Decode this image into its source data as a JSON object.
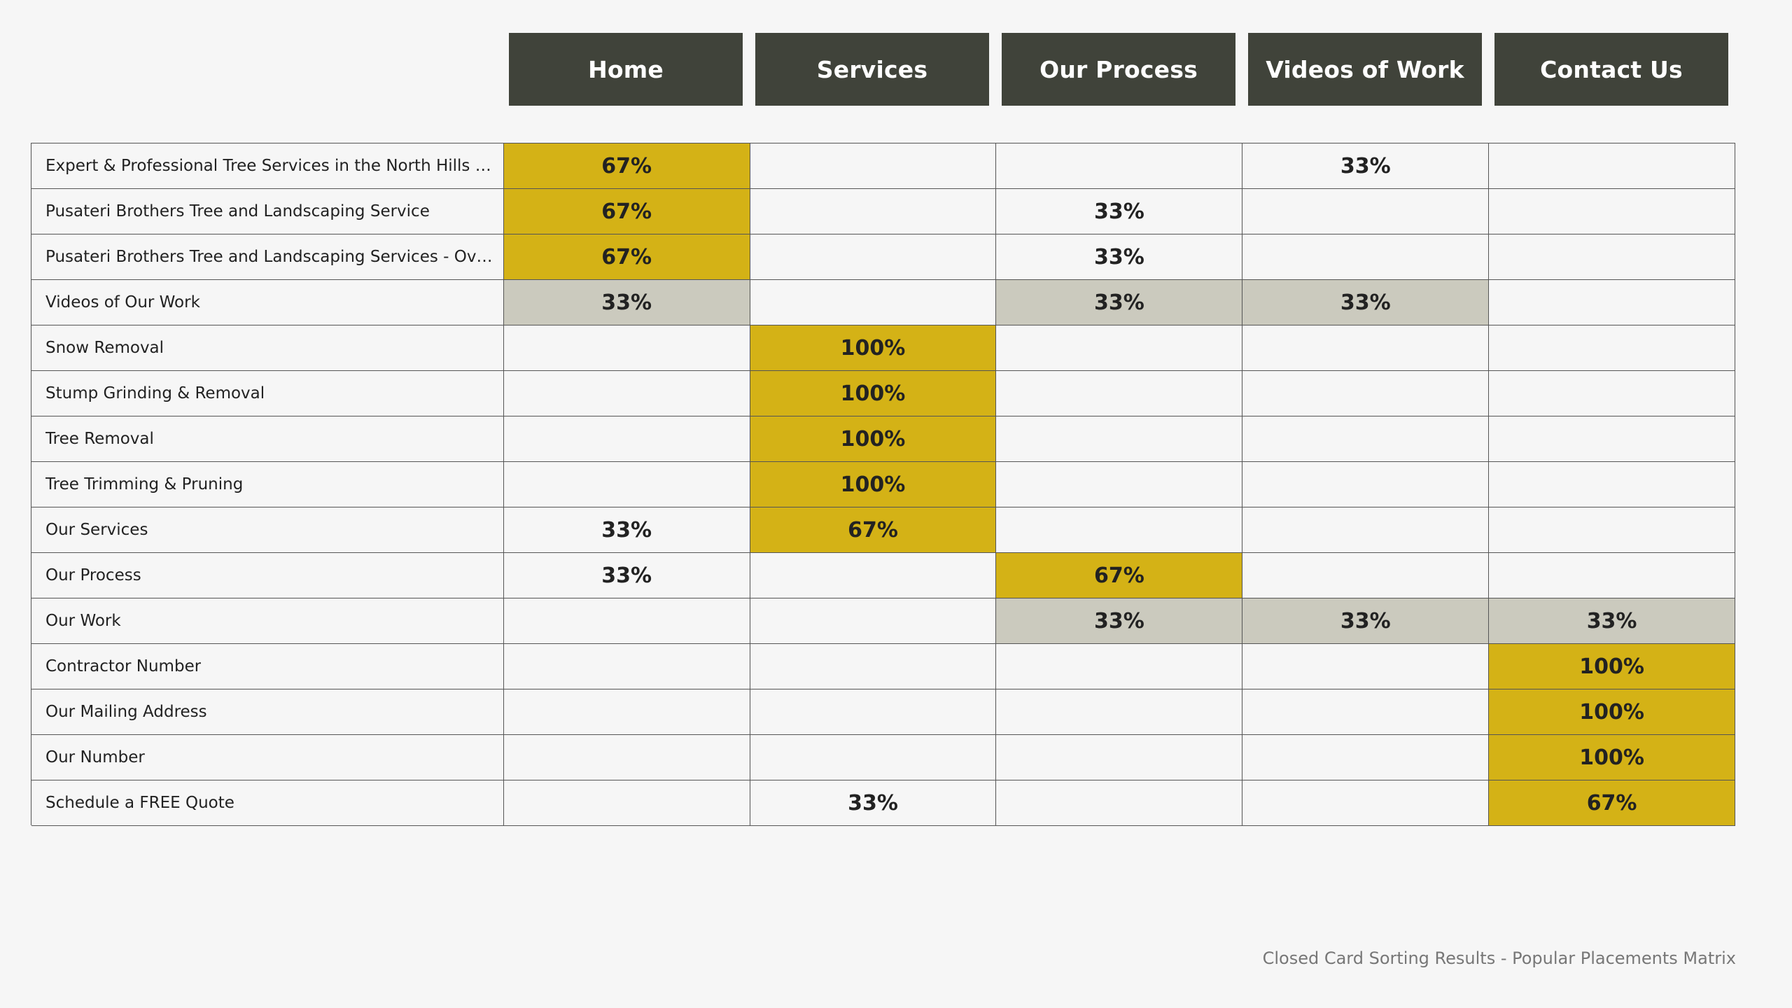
{
  "chart_data": {
    "type": "table",
    "columns": [
      "Home",
      "Services",
      "Our Process",
      "Videos of Work",
      "Contact Us"
    ],
    "rows": [
      {
        "label": "Expert & Professional Tree Services in the North Hills of...",
        "values": [
          "67%",
          "",
          "",
          "33%",
          ""
        ],
        "highlight": [
          "primary",
          "",
          "",
          "",
          ""
        ]
      },
      {
        "label": "Pusateri Brothers Tree and Landscaping Service",
        "values": [
          "67%",
          "",
          "33%",
          "",
          ""
        ],
        "highlight": [
          "primary",
          "",
          "",
          "",
          ""
        ]
      },
      {
        "label": "Pusateri Brothers Tree and Landscaping Services - Over...",
        "values": [
          "67%",
          "",
          "33%",
          "",
          ""
        ],
        "highlight": [
          "primary",
          "",
          "",
          "",
          ""
        ]
      },
      {
        "label": "Videos of Our Work",
        "values": [
          "33%",
          "",
          "33%",
          "33%",
          ""
        ],
        "highlight": [
          "tie",
          "",
          "tie",
          "tie",
          ""
        ]
      },
      {
        "label": "Snow Removal",
        "values": [
          "",
          "100%",
          "",
          "",
          ""
        ],
        "highlight": [
          "",
          "primary",
          "",
          "",
          ""
        ]
      },
      {
        "label": "Stump Grinding & Removal",
        "values": [
          "",
          "100%",
          "",
          "",
          ""
        ],
        "highlight": [
          "",
          "primary",
          "",
          "",
          ""
        ]
      },
      {
        "label": "Tree Removal",
        "values": [
          "",
          "100%",
          "",
          "",
          ""
        ],
        "highlight": [
          "",
          "primary",
          "",
          "",
          ""
        ]
      },
      {
        "label": "Tree Trimming & Pruning",
        "values": [
          "",
          "100%",
          "",
          "",
          ""
        ],
        "highlight": [
          "",
          "primary",
          "",
          "",
          ""
        ]
      },
      {
        "label": "Our Services",
        "values": [
          "33%",
          "67%",
          "",
          "",
          ""
        ],
        "highlight": [
          "",
          "primary",
          "",
          "",
          ""
        ]
      },
      {
        "label": "Our Process",
        "values": [
          "33%",
          "",
          "67%",
          "",
          ""
        ],
        "highlight": [
          "",
          "",
          "primary",
          "",
          ""
        ]
      },
      {
        "label": "Our Work",
        "values": [
          "",
          "",
          "33%",
          "33%",
          "33%"
        ],
        "highlight": [
          "",
          "",
          "tie",
          "tie",
          "tie"
        ]
      },
      {
        "label": "Contractor Number",
        "values": [
          "",
          "",
          "",
          "",
          "100%"
        ],
        "highlight": [
          "",
          "",
          "",
          "",
          "primary"
        ]
      },
      {
        "label": "Our Mailing Address",
        "values": [
          "",
          "",
          "",
          "",
          "100%"
        ],
        "highlight": [
          "",
          "",
          "",
          "",
          "primary"
        ]
      },
      {
        "label": "Our Number",
        "values": [
          "",
          "",
          "",
          "",
          "100%"
        ],
        "highlight": [
          "",
          "",
          "",
          "",
          "primary"
        ]
      },
      {
        "label": "Schedule a FREE Quote",
        "values": [
          "",
          "33%",
          "",
          "",
          "67%"
        ],
        "highlight": [
          "",
          "",
          "",
          "",
          "primary"
        ]
      }
    ]
  },
  "colors": {
    "header_bg": "#40433a",
    "primary": "#d4b216",
    "tie": "#cbcabe"
  },
  "footer": {
    "caption": "Closed Card Sorting Results - Popular Placements Matrix"
  }
}
